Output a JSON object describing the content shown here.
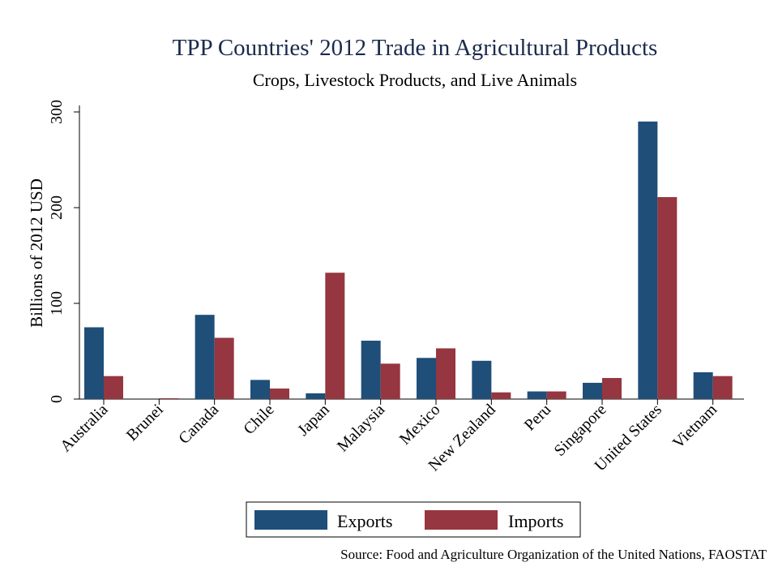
{
  "chart_data": {
    "type": "bar",
    "title": "TPP Countries' 2012 Trade in Agricultural Products",
    "subtitle": "Crops, Livestock Products, and Live Animals",
    "xlabel": "",
    "ylabel": "Billions of 2012 USD",
    "ylim": [
      0,
      300
    ],
    "yticks": [
      "0",
      "100",
      "200",
      "300"
    ],
    "ytick_values": [
      0,
      100,
      200,
      300
    ],
    "categories": [
      "Australia",
      "Brunei",
      "Canada",
      "Chile",
      "Japan",
      "Malaysia",
      "Mexico",
      "New Zealand",
      "Peru",
      "Singapore",
      "United States",
      "Vietnam"
    ],
    "series": [
      {
        "name": "Exports",
        "color": "#1f4e79",
        "values": [
          75,
          0,
          88,
          20,
          6,
          61,
          43,
          40,
          8,
          17,
          290,
          28
        ]
      },
      {
        "name": "Imports",
        "color": "#953640",
        "values": [
          24,
          0.5,
          64,
          11,
          132,
          37,
          53,
          7,
          8,
          22,
          211,
          24
        ]
      }
    ],
    "legend_position": "bottom",
    "source": "Source: Food and Agriculture Organization of the United Nations, FAOSTAT"
  }
}
